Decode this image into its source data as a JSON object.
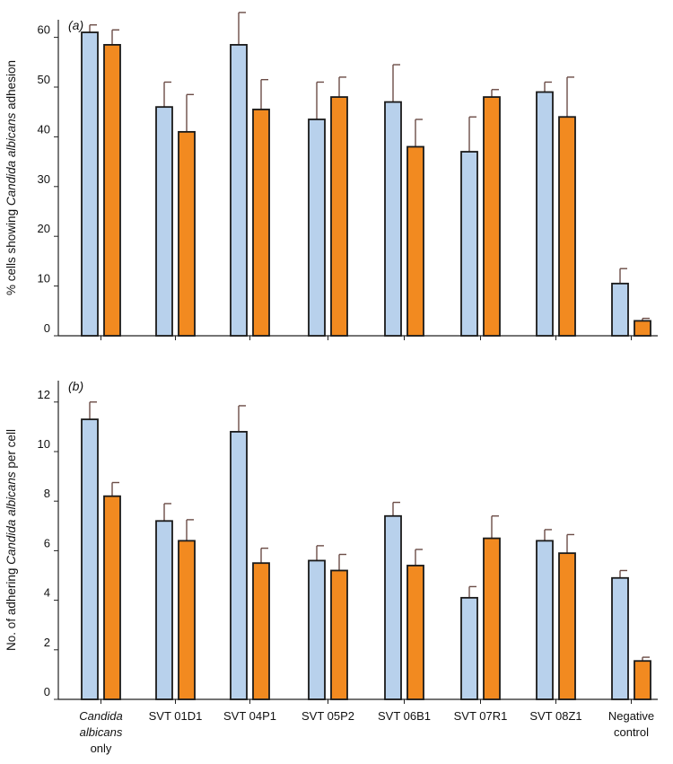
{
  "chart_data": [
    {
      "type": "bar",
      "panel_label": "(a)",
      "ylabel_parts": [
        "% cells showing ",
        "Candida albicans",
        " adhesion"
      ],
      "ylim": [
        0,
        65
      ],
      "yticks": [
        0,
        10,
        20,
        30,
        40,
        50,
        60
      ],
      "ytick_labels": [
        "0",
        "10",
        "20",
        "30",
        "40",
        "50",
        "60"
      ],
      "categories": [
        "Candida albicans only",
        "SVT 01D1",
        "SVT 04P1",
        "SVT 05P2",
        "SVT 06B1",
        "SVT 07R1",
        "SVT 08Z1",
        "Negative control"
      ],
      "series": [
        {
          "color": "#b8d1ec",
          "values": [
            61,
            46,
            58.5,
            43.5,
            47,
            37,
            49,
            10.5
          ],
          "errors": [
            1.5,
            5,
            6.5,
            7.5,
            7.5,
            7,
            2,
            3
          ]
        },
        {
          "color": "#f28a20",
          "values": [
            58.5,
            41,
            45.5,
            48,
            38,
            48,
            44,
            3
          ],
          "errors": [
            3,
            7.5,
            6,
            4,
            5.5,
            1.5,
            8,
            0.5
          ]
        }
      ]
    },
    {
      "type": "bar",
      "panel_label": "(b)",
      "ylabel_parts": [
        "No. of adhering ",
        "Candida albicans",
        " per cell"
      ],
      "ylim": [
        0,
        12.4
      ],
      "yticks": [
        0,
        2,
        4,
        6,
        8,
        10,
        12
      ],
      "ytick_labels": [
        "0",
        "2",
        "4",
        "6",
        "8",
        "10",
        "12"
      ],
      "categories": [
        "Candida albicans only",
        "SVT 01D1",
        "SVT 04P1",
        "SVT 05P2",
        "SVT 06B1",
        "SVT 07R1",
        "SVT 08Z1",
        "Negative control"
      ],
      "category_labels": [
        {
          "lines": [
            "Candida",
            "albicans",
            "only"
          ],
          "italic_lines": [
            0,
            1
          ]
        },
        {
          "lines": [
            "SVT 01D1"
          ],
          "italic_lines": []
        },
        {
          "lines": [
            "SVT 04P1"
          ],
          "italic_lines": []
        },
        {
          "lines": [
            "SVT 05P2"
          ],
          "italic_lines": []
        },
        {
          "lines": [
            "SVT 06B1"
          ],
          "italic_lines": []
        },
        {
          "lines": [
            "SVT 07R1"
          ],
          "italic_lines": []
        },
        {
          "lines": [
            "SVT 08Z1"
          ],
          "italic_lines": []
        },
        {
          "lines": [
            "Negative",
            "control"
          ],
          "italic_lines": []
        }
      ],
      "series": [
        {
          "color": "#b8d1ec",
          "values": [
            11.3,
            7.2,
            10.8,
            5.6,
            7.4,
            4.1,
            6.4,
            4.9
          ],
          "errors": [
            0.7,
            0.7,
            1.05,
            0.6,
            0.55,
            0.45,
            0.45,
            0.3
          ]
        },
        {
          "color": "#f28a20",
          "values": [
            8.2,
            6.4,
            5.5,
            5.2,
            5.4,
            6.5,
            5.9,
            1.55
          ],
          "errors": [
            0.55,
            0.85,
            0.6,
            0.65,
            0.65,
            0.9,
            0.75,
            0.15
          ]
        }
      ]
    }
  ]
}
